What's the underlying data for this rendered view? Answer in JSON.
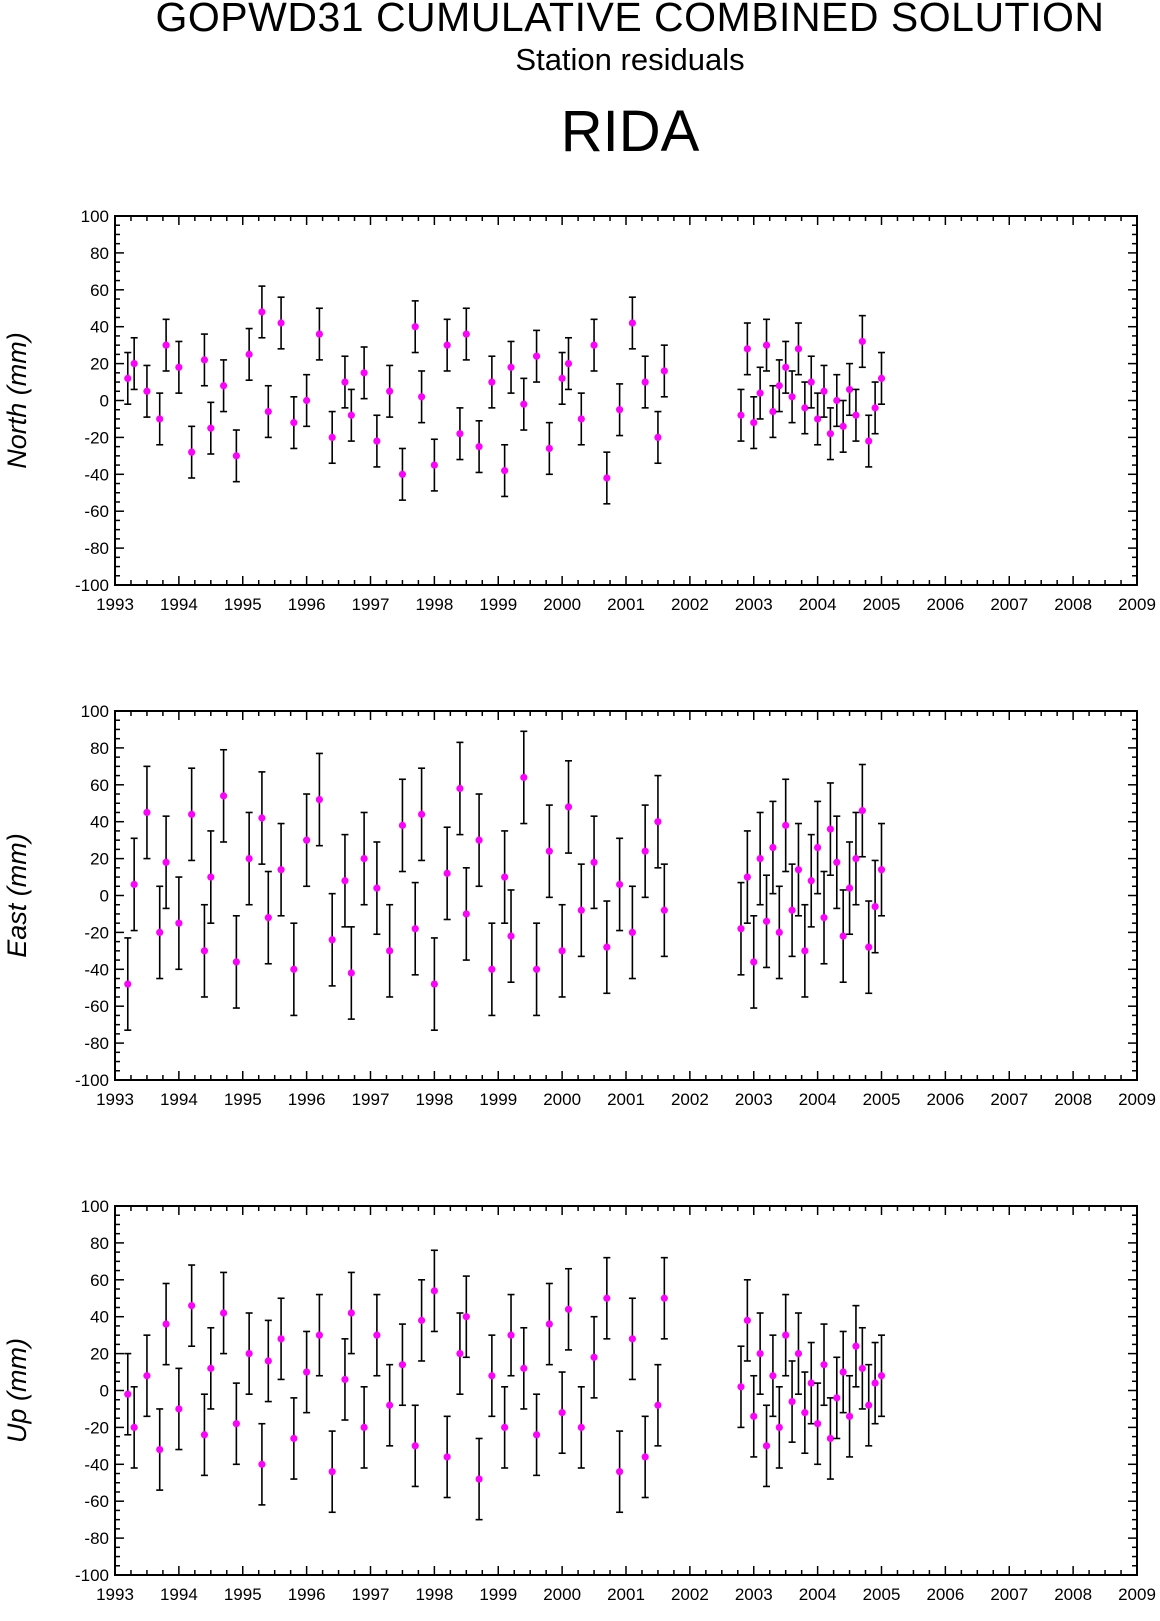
{
  "header": {
    "title": "GOPWD31 CUMULATIVE COMBINED SOLUTION",
    "subtitle": "Station residuals",
    "station": "RIDA"
  },
  "colors": {
    "marker": "#ff00ff",
    "error_bar": "#000000",
    "axis": "#000000"
  },
  "chart_data": [
    {
      "type": "scatter",
      "ylabel": "North (mm)",
      "xlim": [
        1993,
        2009
      ],
      "ylim": [
        -100,
        100
      ],
      "x_ticks": [
        "1993",
        "1994",
        "1995",
        "1996",
        "1997",
        "1998",
        "1999",
        "2000",
        "2001",
        "2002",
        "2003",
        "2004",
        "2005",
        "2006",
        "2007",
        "2008",
        "2009"
      ],
      "y_ticks": [
        "100",
        "80",
        "60",
        "40",
        "20",
        "0",
        "-20",
        "-40",
        "-60",
        "-80",
        "-100"
      ],
      "error_bar_half_width_mm": 14,
      "x": [
        1993.2,
        1993.3,
        1993.5,
        1993.7,
        1993.8,
        1994.0,
        1994.2,
        1994.4,
        1994.5,
        1994.7,
        1994.9,
        1995.1,
        1995.3,
        1995.4,
        1995.6,
        1995.8,
        1996.0,
        1996.2,
        1996.4,
        1996.6,
        1996.7,
        1996.9,
        1997.1,
        1997.3,
        1997.5,
        1997.7,
        1997.8,
        1998.0,
        1998.2,
        1998.4,
        1998.5,
        1998.7,
        1998.9,
        1999.1,
        1999.2,
        1999.4,
        1999.6,
        1999.8,
        2000.0,
        2000.1,
        2000.3,
        2000.5,
        2000.7,
        2000.9,
        2001.1,
        2001.3,
        2001.5,
        2001.6,
        2002.8,
        2002.9,
        2003.0,
        2003.1,
        2003.2,
        2003.3,
        2003.4,
        2003.5,
        2003.6,
        2003.7,
        2003.8,
        2003.9,
        2004.0,
        2004.1,
        2004.2,
        2004.3,
        2004.4,
        2004.5,
        2004.6,
        2004.7,
        2004.8,
        2004.9,
        2005.0
      ],
      "y": [
        12,
        20,
        5,
        -10,
        30,
        18,
        -28,
        22,
        -15,
        8,
        -30,
        25,
        48,
        -6,
        42,
        -12,
        0,
        36,
        -20,
        10,
        -8,
        15,
        -22,
        5,
        -40,
        40,
        2,
        -35,
        30,
        -18,
        36,
        -25,
        10,
        -38,
        18,
        -2,
        24,
        -26,
        12,
        20,
        -10,
        30,
        -42,
        -5,
        42,
        10,
        -20,
        16,
        -8,
        28,
        -12,
        4,
        30,
        -6,
        8,
        18,
        2,
        28,
        -4,
        10,
        -10,
        5,
        -18,
        0,
        -14,
        6,
        -8,
        32,
        -22,
        -4,
        12
      ]
    },
    {
      "type": "scatter",
      "ylabel": "East (mm)",
      "xlim": [
        1993,
        2009
      ],
      "ylim": [
        -100,
        100
      ],
      "x_ticks": [
        "1993",
        "1994",
        "1995",
        "1996",
        "1997",
        "1998",
        "1999",
        "2000",
        "2001",
        "2002",
        "2003",
        "2004",
        "2005",
        "2006",
        "2007",
        "2008",
        "2009"
      ],
      "y_ticks": [
        "100",
        "80",
        "60",
        "40",
        "20",
        "0",
        "-20",
        "-40",
        "-60",
        "-80",
        "-100"
      ],
      "error_bar_half_width_mm": 25,
      "x": [
        1993.2,
        1993.3,
        1993.5,
        1993.7,
        1993.8,
        1994.0,
        1994.2,
        1994.4,
        1994.5,
        1994.7,
        1994.9,
        1995.1,
        1995.3,
        1995.4,
        1995.6,
        1995.8,
        1996.0,
        1996.2,
        1996.4,
        1996.6,
        1996.7,
        1996.9,
        1997.1,
        1997.3,
        1997.5,
        1997.7,
        1997.8,
        1998.0,
        1998.2,
        1998.4,
        1998.5,
        1998.7,
        1998.9,
        1999.1,
        1999.2,
        1999.4,
        1999.6,
        1999.8,
        2000.0,
        2000.1,
        2000.3,
        2000.5,
        2000.7,
        2000.9,
        2001.1,
        2001.3,
        2001.5,
        2001.6,
        2002.8,
        2002.9,
        2003.0,
        2003.1,
        2003.2,
        2003.3,
        2003.4,
        2003.5,
        2003.6,
        2003.7,
        2003.8,
        2003.9,
        2004.0,
        2004.1,
        2004.2,
        2004.3,
        2004.4,
        2004.5,
        2004.6,
        2004.7,
        2004.8,
        2004.9,
        2005.0
      ],
      "y": [
        -48,
        6,
        45,
        -20,
        18,
        -15,
        44,
        -30,
        10,
        54,
        -36,
        20,
        42,
        -12,
        14,
        -40,
        30,
        52,
        -24,
        8,
        -42,
        20,
        4,
        -30,
        38,
        -18,
        44,
        -48,
        12,
        58,
        -10,
        30,
        -40,
        10,
        -22,
        64,
        -40,
        24,
        -30,
        48,
        -8,
        18,
        -28,
        6,
        -20,
        24,
        40,
        -8,
        -18,
        10,
        -36,
        20,
        -14,
        26,
        -20,
        38,
        -8,
        14,
        -30,
        8,
        26,
        -12,
        36,
        18,
        -22,
        4,
        20,
        46,
        -28,
        -6,
        14
      ]
    },
    {
      "type": "scatter",
      "ylabel": "Up (mm)",
      "xlim": [
        1993,
        2009
      ],
      "ylim": [
        -100,
        100
      ],
      "x_ticks": [
        "1993",
        "1994",
        "1995",
        "1996",
        "1997",
        "1998",
        "1999",
        "2000",
        "2001",
        "2002",
        "2003",
        "2004",
        "2005",
        "2006",
        "2007",
        "2008",
        "2009"
      ],
      "y_ticks": [
        "100",
        "80",
        "60",
        "40",
        "20",
        "0",
        "-20",
        "-40",
        "-60",
        "-80",
        "-100"
      ],
      "error_bar_half_width_mm": 22,
      "x": [
        1993.2,
        1993.3,
        1993.5,
        1993.7,
        1993.8,
        1994.0,
        1994.2,
        1994.4,
        1994.5,
        1994.7,
        1994.9,
        1995.1,
        1995.3,
        1995.4,
        1995.6,
        1995.8,
        1996.0,
        1996.2,
        1996.4,
        1996.6,
        1996.7,
        1996.9,
        1997.1,
        1997.3,
        1997.5,
        1997.7,
        1997.8,
        1998.0,
        1998.2,
        1998.4,
        1998.5,
        1998.7,
        1998.9,
        1999.1,
        1999.2,
        1999.4,
        1999.6,
        1999.8,
        2000.0,
        2000.1,
        2000.3,
        2000.5,
        2000.7,
        2000.9,
        2001.1,
        2001.3,
        2001.5,
        2001.6,
        2002.8,
        2002.9,
        2003.0,
        2003.1,
        2003.2,
        2003.3,
        2003.4,
        2003.5,
        2003.6,
        2003.7,
        2003.8,
        2003.9,
        2004.0,
        2004.1,
        2004.2,
        2004.3,
        2004.4,
        2004.5,
        2004.6,
        2004.7,
        2004.8,
        2004.9,
        2005.0
      ],
      "y": [
        -2,
        -20,
        8,
        -32,
        36,
        -10,
        46,
        -24,
        12,
        42,
        -18,
        20,
        -40,
        16,
        28,
        -26,
        10,
        30,
        -44,
        6,
        42,
        -20,
        30,
        -8,
        14,
        -30,
        38,
        54,
        -36,
        20,
        40,
        -48,
        8,
        -20,
        30,
        12,
        -24,
        36,
        -12,
        44,
        -20,
        18,
        50,
        -44,
        28,
        -36,
        -8,
        50,
        2,
        38,
        -14,
        20,
        -30,
        8,
        -20,
        30,
        -6,
        20,
        -12,
        4,
        -18,
        14,
        -26,
        -4,
        10,
        -14,
        24,
        12,
        -8,
        4,
        8
      ]
    }
  ]
}
